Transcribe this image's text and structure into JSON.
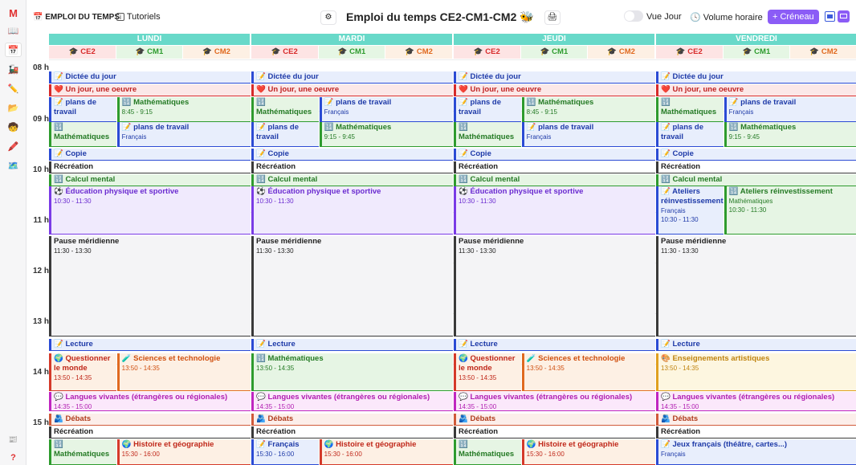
{
  "sidebar": {
    "logo_icon": "app-logo-icon",
    "items": [
      {
        "icon": "book-icon"
      },
      {
        "icon": "schedule-icon"
      },
      {
        "icon": "train-icon"
      },
      {
        "icon": "pencil-icon"
      },
      {
        "icon": "folder-icon"
      },
      {
        "icon": "student-icon"
      },
      {
        "icon": "pen-icon"
      },
      {
        "icon": "map-icon"
      }
    ],
    "bottom": [
      {
        "icon": "news-icon"
      },
      {
        "icon": "help-icon",
        "glyph": "?"
      }
    ]
  },
  "topbar": {
    "section_label": "EMPLOI DU TEMPS",
    "tutorials_label": "Tutoriels",
    "title": "Emploi du temps CE2-CM1-CM2 🐝",
    "toggle_label": "Vue Jour",
    "hours_label": "Volume horaire",
    "add_button_label": "+ Créneau",
    "accent": "#8b5cf6"
  },
  "days": [
    {
      "name": "LUNDI"
    },
    {
      "name": "MARDI"
    },
    {
      "name": "JEUDI"
    },
    {
      "name": "VENDREDI"
    }
  ],
  "levels": [
    {
      "label": "🎓 CE2",
      "color": "#d72a2a",
      "bg": "#fde4e4"
    },
    {
      "label": "🎓 CM1",
      "color": "#2e9b2e",
      "bg": "#e5f6e4"
    },
    {
      "label": "🎓 CM2",
      "color": "#e06a20",
      "bg": "#fdf0e4"
    }
  ],
  "hours": [
    "08 h",
    "09 h",
    "10 h",
    "11 h",
    "12 h",
    "13 h",
    "14 h",
    "15 h"
  ],
  "schedule": [
    {
      "day": "LUNDI",
      "events": [
        {
          "title": "📝 Dictée du jour",
          "cls": "c-fr"
        },
        {
          "title": "❤️ Un jour, une oeuvre",
          "cls": "c-art"
        },
        {
          "title": "📝 plans de travail",
          "cls": "c-fr"
        },
        {
          "title": "🔢 Mathématiques",
          "time": "8:45 - 9:15",
          "cls": "c-ma"
        },
        {
          "title": "🔢 Mathématiques",
          "cls": "c-ma"
        },
        {
          "title": "📝 plans de travail",
          "sub": "Français",
          "cls": "c-fr"
        },
        {
          "title": "📝 Copie",
          "cls": "c-fr"
        },
        {
          "title": "Récréation",
          "cls": "c-rec"
        },
        {
          "title": "🔢 Calcul mental",
          "cls": "c-ma"
        },
        {
          "title": "⚽ Éducation physique et sportive",
          "time": "10:30 - 11:30",
          "cls": "c-eps"
        },
        {
          "title": "Pause méridienne",
          "time": "11:30 - 13:30",
          "cls": "c-gr"
        },
        {
          "title": "📝 Lecture",
          "cls": "c-fr"
        },
        {
          "title": "🌍 Questionner le monde",
          "time": "13:50 - 14:35",
          "cls": "c-qm"
        },
        {
          "title": "🧪 Sciences et technologie",
          "time": "13:50 - 14:35",
          "cls": "c-sc"
        },
        {
          "title": "💬 Langues vivantes (étrangères ou régionales)",
          "time": "14:35 - 15:00",
          "cls": "c-lv"
        },
        {
          "title": "🫂 Débats",
          "cls": "c-deb"
        },
        {
          "title": "Récréation",
          "cls": "c-rec"
        },
        {
          "title": "🔢 Mathématiques",
          "cls": "c-ma"
        },
        {
          "title": "🌍 Histoire et géographie",
          "time": "15:30 - 16:00",
          "cls": "c-hg"
        }
      ]
    },
    {
      "day": "MARDI",
      "events": [
        {
          "title": "📝 Dictée du jour",
          "cls": "c-fr"
        },
        {
          "title": "❤️ Un jour, une oeuvre",
          "cls": "c-art"
        },
        {
          "title": "🔢 Mathématiques",
          "cls": "c-ma"
        },
        {
          "title": "📝 plans de travail",
          "sub": "Français",
          "cls": "c-fr"
        },
        {
          "title": "📝 plans de travail",
          "cls": "c-fr"
        },
        {
          "title": "🔢 Mathématiques",
          "time": "9:15 - 9:45",
          "cls": "c-ma"
        },
        {
          "title": "📝 Copie",
          "cls": "c-fr"
        },
        {
          "title": "Récréation",
          "cls": "c-rec"
        },
        {
          "title": "🔢 Calcul mental",
          "cls": "c-ma"
        },
        {
          "title": "⚽ Éducation physique et sportive",
          "time": "10:30 - 11:30",
          "cls": "c-eps"
        },
        {
          "title": "Pause méridienne",
          "time": "11:30 - 13:30",
          "cls": "c-gr"
        },
        {
          "title": "📝 Lecture",
          "cls": "c-fr"
        },
        {
          "title": "🔢 Mathématiques",
          "time": "13:50 - 14:35",
          "cls": "c-ma"
        },
        {
          "title": "💬 Langues vivantes (étrangères ou régionales)",
          "time": "14:35 - 15:00",
          "cls": "c-lv"
        },
        {
          "title": "🫂 Débats",
          "cls": "c-deb"
        },
        {
          "title": "Récréation",
          "cls": "c-rec"
        },
        {
          "title": "📝 Français",
          "time": "15:30 - 16:00",
          "cls": "c-fr"
        },
        {
          "title": "🌍 Histoire et géographie",
          "time": "15:30 - 16:00",
          "cls": "c-hg"
        }
      ]
    },
    {
      "day": "JEUDI",
      "events": [
        {
          "title": "📝 Dictée du jour",
          "cls": "c-fr"
        },
        {
          "title": "❤️ Un jour, une oeuvre",
          "cls": "c-art"
        },
        {
          "title": "📝 plans de travail",
          "cls": "c-fr"
        },
        {
          "title": "🔢 Mathématiques",
          "time": "8:45 - 9:15",
          "cls": "c-ma"
        },
        {
          "title": "🔢 Mathématiques",
          "cls": "c-ma"
        },
        {
          "title": "📝 plans de travail",
          "sub": "Français",
          "cls": "c-fr"
        },
        {
          "title": "📝 Copie",
          "cls": "c-fr"
        },
        {
          "title": "Récréation",
          "cls": "c-rec"
        },
        {
          "title": "🔢 Calcul mental",
          "cls": "c-ma"
        },
        {
          "title": "⚽ Éducation physique et sportive",
          "time": "10:30 - 11:30",
          "cls": "c-eps"
        },
        {
          "title": "Pause méridienne",
          "time": "11:30 - 13:30",
          "cls": "c-gr"
        },
        {
          "title": "📝 Lecture",
          "cls": "c-fr"
        },
        {
          "title": "🌍 Questionner le monde",
          "time": "13:50 - 14:35",
          "cls": "c-qm"
        },
        {
          "title": "🧪 Sciences et technologie",
          "time": "13:50 - 14:35",
          "cls": "c-sc"
        },
        {
          "title": "💬 Langues vivantes (étrangères ou régionales)",
          "time": "14:35 - 15:00",
          "cls": "c-lv"
        },
        {
          "title": "🫂 Débats",
          "cls": "c-deb"
        },
        {
          "title": "Récréation",
          "cls": "c-rec"
        },
        {
          "title": "🔢 Mathématiques",
          "cls": "c-ma"
        },
        {
          "title": "🌍 Histoire et géographie",
          "time": "15:30 - 16:00",
          "cls": "c-hg"
        }
      ]
    },
    {
      "day": "VENDREDI",
      "events": [
        {
          "title": "📝 Dictée du jour",
          "cls": "c-fr"
        },
        {
          "title": "❤️ Un jour, une oeuvre",
          "cls": "c-art"
        },
        {
          "title": "🔢 Mathématiques",
          "cls": "c-ma"
        },
        {
          "title": "📝 plans de travail",
          "sub": "Français",
          "cls": "c-fr"
        },
        {
          "title": "📝 plans de travail",
          "cls": "c-fr"
        },
        {
          "title": "🔢 Mathématiques",
          "time": "9:15 - 9:45",
          "cls": "c-ma"
        },
        {
          "title": "📝 Copie",
          "cls": "c-fr"
        },
        {
          "title": "Récréation",
          "cls": "c-rec"
        },
        {
          "title": "🔢 Calcul mental",
          "cls": "c-ma"
        },
        {
          "title": "📝 Ateliers réinvestissement",
          "sub": "Français",
          "time": "10:30 - 11:30",
          "cls": "c-fr"
        },
        {
          "title": "🔢 Ateliers réinvestissement",
          "sub": "Mathématiques",
          "time": "10:30 - 11:30",
          "cls": "c-ma"
        },
        {
          "title": "Pause méridienne",
          "time": "11:30 - 13:30",
          "cls": "c-gr"
        },
        {
          "title": "📝 Lecture",
          "cls": "c-fr"
        },
        {
          "title": "🎨 Enseignements artistiques",
          "time": "13:50 - 14:35",
          "cls": "c-ea"
        },
        {
          "title": "💬 Langues vivantes (étrangères ou régionales)",
          "time": "14:35 - 15:00",
          "cls": "c-lv"
        },
        {
          "title": "🫂 Débats",
          "cls": "c-deb"
        },
        {
          "title": "Récréation",
          "cls": "c-rec"
        },
        {
          "title": "📝 Jeux français (théâtre, cartes...)",
          "sub": "Français",
          "cls": "c-fr"
        }
      ]
    }
  ]
}
